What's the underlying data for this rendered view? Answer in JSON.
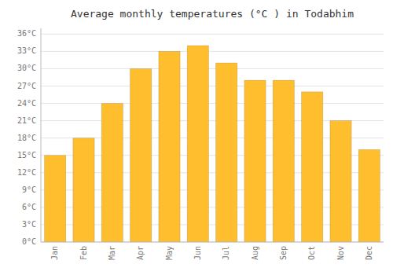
{
  "chart_data": {
    "type": "bar",
    "title": "Average monthly temperatures (°C ) in Todabhim",
    "categories": [
      "Jan",
      "Feb",
      "Mar",
      "Apr",
      "May",
      "Jun",
      "Jul",
      "Aug",
      "Sep",
      "Oct",
      "Nov",
      "Dec"
    ],
    "values": [
      15,
      18,
      24,
      30,
      33,
      34,
      31,
      28,
      28,
      26,
      21,
      16
    ],
    "color": "#FFBE2D",
    "ylim": [
      0,
      37
    ],
    "yticks": [
      {
        "value": 0,
        "label": "0°C"
      },
      {
        "value": 3,
        "label": "3°C"
      },
      {
        "value": 6,
        "label": "6°C"
      },
      {
        "value": 9,
        "label": "9°C"
      },
      {
        "value": 12,
        "label": "12°C"
      },
      {
        "value": 15,
        "label": "15°C"
      },
      {
        "value": 18,
        "label": "18°C"
      },
      {
        "value": 21,
        "label": "21°C"
      },
      {
        "value": 24,
        "label": "24°C"
      },
      {
        "value": 27,
        "label": "27°C"
      },
      {
        "value": 30,
        "label": "30°C"
      },
      {
        "value": 33,
        "label": "33°C"
      },
      {
        "value": 36,
        "label": "36°C"
      }
    ],
    "grid": true
  }
}
